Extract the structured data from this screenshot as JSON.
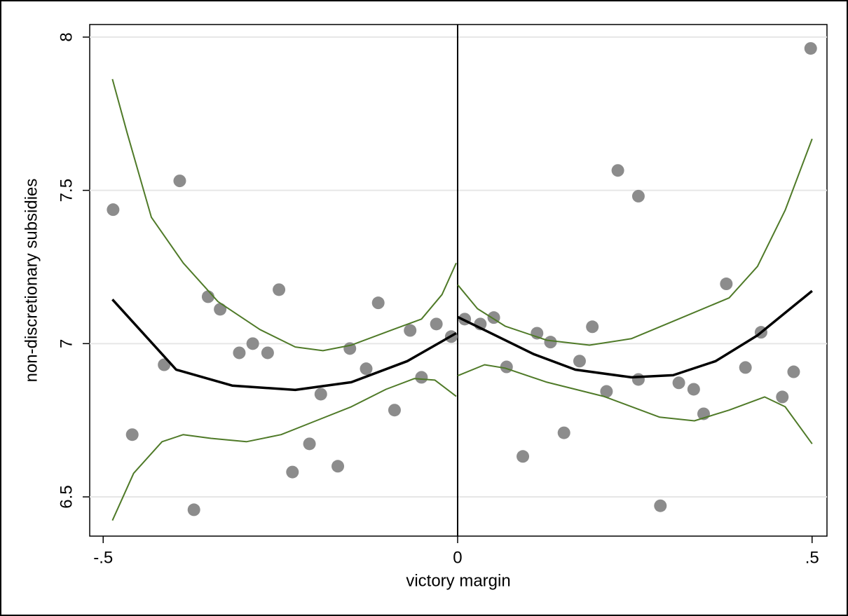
{
  "chart_data": {
    "type": "scatter",
    "x_label": "victory margin",
    "y_label": "non-discretionary subsidies",
    "xlim": [
      -0.519,
      0.521
    ],
    "ylim": [
      6.372,
      8.041
    ],
    "xticks": [
      {
        "value": -0.5,
        "label": "-.5"
      },
      0,
      {
        "value": 0.5,
        "label": ".5"
      }
    ],
    "yticks": [
      6.5,
      7,
      7.5,
      8
    ],
    "grid": true,
    "xline": 0,
    "xline_color": "#000000",
    "series": [
      {
        "type": "scatter",
        "color": "#8c8c8c",
        "x": [
          -0.486,
          -0.459,
          -0.414,
          -0.392,
          -0.372,
          -0.352,
          -0.335,
          -0.308,
          -0.289,
          -0.268,
          -0.252,
          -0.233,
          -0.209,
          -0.193,
          -0.169,
          -0.152,
          -0.129,
          -0.112,
          -0.089,
          -0.067,
          -0.051,
          -0.03,
          -0.009,
          0.01,
          0.032,
          0.051,
          0.069,
          0.092,
          0.112,
          0.131,
          0.15,
          0.172,
          0.19,
          0.21,
          0.226,
          0.255,
          0.255,
          0.286,
          0.312,
          0.333,
          0.347,
          0.379,
          0.406,
          0.428,
          0.458,
          0.474,
          0.498
        ],
        "values": [
          7.437,
          6.703,
          6.931,
          7.531,
          6.458,
          7.153,
          7.112,
          6.97,
          7.0,
          6.97,
          7.176,
          6.581,
          6.673,
          6.835,
          6.6,
          6.984,
          6.918,
          7.133,
          6.783,
          7.043,
          6.89,
          7.064,
          7.023,
          7.08,
          7.064,
          7.085,
          6.924,
          6.632,
          7.034,
          7.005,
          6.709,
          6.943,
          7.055,
          6.844,
          7.565,
          7.481,
          6.883,
          6.471,
          6.872,
          6.851,
          6.771,
          7.195,
          6.922,
          7.037,
          6.826,
          6.908,
          7.963
        ]
      },
      {
        "type": "line",
        "color": "#000000",
        "width": 3.5,
        "x": [
          -0.487,
          -0.397,
          -0.318,
          -0.229,
          -0.15,
          -0.071,
          -0.002
        ],
        "values": [
          7.144,
          6.915,
          6.863,
          6.849,
          6.874,
          6.943,
          7.034
        ]
      },
      {
        "type": "line",
        "color": "#4f7a28",
        "width": 2,
        "x": [
          -0.487,
          -0.466,
          -0.432,
          -0.387,
          -0.338,
          -0.279,
          -0.229,
          -0.19,
          -0.15,
          -0.091,
          -0.051,
          -0.022,
          -0.002
        ],
        "values": [
          7.863,
          7.686,
          7.412,
          7.263,
          7.137,
          7.046,
          6.989,
          6.977,
          6.995,
          7.046,
          7.08,
          7.16,
          7.263
        ]
      },
      {
        "type": "line",
        "color": "#4f7a28",
        "width": 2,
        "x": [
          -0.487,
          -0.457,
          -0.417,
          -0.387,
          -0.348,
          -0.298,
          -0.249,
          -0.2,
          -0.15,
          -0.101,
          -0.061,
          -0.032,
          -0.002
        ],
        "values": [
          6.423,
          6.577,
          6.68,
          6.703,
          6.691,
          6.68,
          6.703,
          6.748,
          6.794,
          6.851,
          6.886,
          6.881,
          6.828
        ]
      },
      {
        "type": "line",
        "color": "#000000",
        "width": 3.5,
        "x": [
          0,
          0.047,
          0.107,
          0.166,
          0.245,
          0.304,
          0.364,
          0.423,
          0.5
        ],
        "values": [
          7.087,
          7.034,
          6.966,
          6.915,
          6.89,
          6.897,
          6.943,
          7.027,
          7.172
        ]
      },
      {
        "type": "line",
        "color": "#4f7a28",
        "width": 2,
        "x": [
          0,
          0.028,
          0.067,
          0.126,
          0.186,
          0.245,
          0.304,
          0.383,
          0.423,
          0.462,
          0.5
        ],
        "values": [
          7.192,
          7.114,
          7.057,
          7.011,
          6.995,
          7.016,
          7.073,
          7.149,
          7.252,
          7.435,
          7.668
        ]
      },
      {
        "type": "line",
        "color": "#4f7a28",
        "width": 2,
        "x": [
          0,
          0.038,
          0.067,
          0.126,
          0.206,
          0.285,
          0.334,
          0.383,
          0.433,
          0.462,
          0.5
        ],
        "values": [
          6.895,
          6.931,
          6.92,
          6.874,
          6.828,
          6.76,
          6.748,
          6.783,
          6.826,
          6.794,
          6.673
        ]
      }
    ]
  }
}
